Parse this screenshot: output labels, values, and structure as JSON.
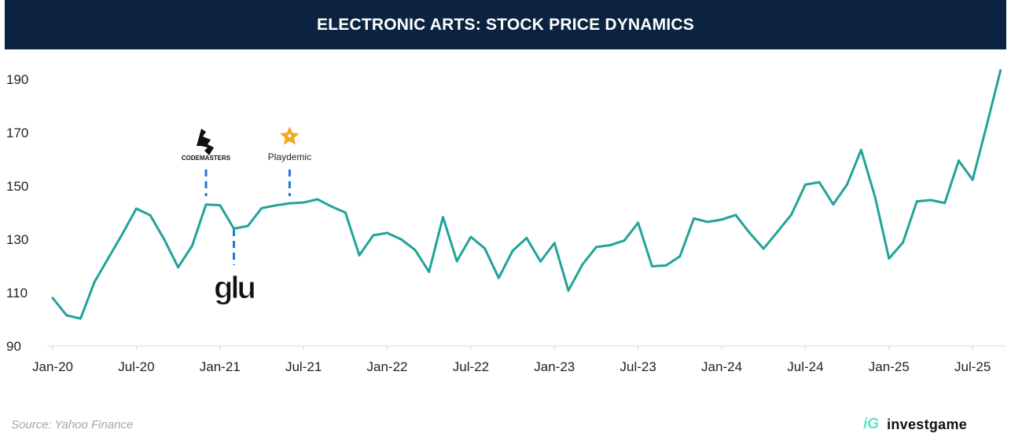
{
  "header": {
    "title": "ELECTRONIC ARTS: STOCK PRICE DYNAMICS"
  },
  "footer": {
    "source": "Source: Yahoo Finance",
    "brand": "investgame",
    "brand_mark": "iG"
  },
  "colors": {
    "header_bg": "#0b2340",
    "line": "#21a39a",
    "annotation": "#1f78e0",
    "brand": "#5fe3c2"
  },
  "chart_data": {
    "type": "line",
    "title": "ELECTRONIC ARTS: STOCK PRICE DYNAMICS",
    "xlabel": "",
    "ylabel": "",
    "ylim": [
      90,
      195
    ],
    "yticks": [
      90,
      110,
      130,
      150,
      170,
      190
    ],
    "xticks": [
      "Jan-20",
      "Jul-20",
      "Jan-21",
      "Jul-21",
      "Jan-22",
      "Jul-22",
      "Jan-23",
      "Jul-23",
      "Jan-24",
      "Jul-24",
      "Jan-25",
      "Jul-25"
    ],
    "start_month": "Jan-20",
    "grid": false,
    "values": [
      108,
      101.5,
      100.3,
      114,
      123,
      132,
      141.5,
      139,
      130,
      119.5,
      127.5,
      143,
      142.8,
      134,
      135,
      141.7,
      142.7,
      143.5,
      143.8,
      145,
      142.3,
      140,
      124,
      131.5,
      132.4,
      130,
      126,
      117.8,
      138.3,
      121.8,
      130.9,
      126.6,
      115.5,
      125.7,
      130.5,
      121.7,
      128.6,
      110.8,
      120.5,
      127.1,
      127.8,
      129.5,
      136.2,
      119.9,
      120.2,
      123.6,
      137.8,
      136.5,
      137.4,
      139.1,
      132.4,
      126.5,
      132.8,
      139.3,
      150.5,
      151.4,
      143.1,
      150.6,
      163.5,
      145.9,
      122.8,
      128.8,
      144.2,
      144.7,
      143.6,
      159.5,
      152.3,
      172.5,
      193.3
    ],
    "annotations": [
      {
        "label": "CODEMASTERS",
        "month_index": 11,
        "position": "above"
      },
      {
        "label": "Playdemic",
        "month_index": 17,
        "position": "above"
      },
      {
        "label": "glu",
        "month_index": 13,
        "position": "below"
      }
    ]
  }
}
